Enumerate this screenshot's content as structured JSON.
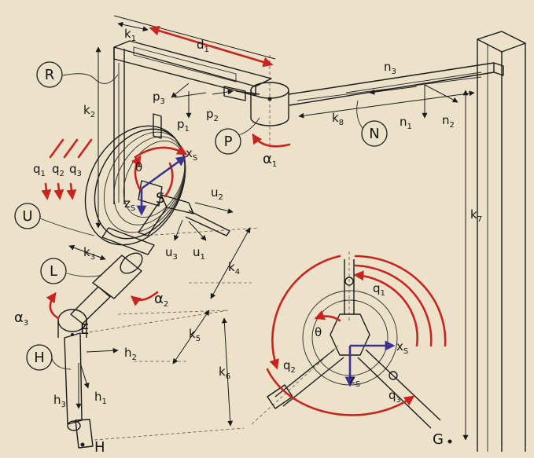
{
  "labels": {
    "R": "R",
    "P": "P",
    "N": "N",
    "U": "U",
    "L": "L",
    "H_circle": "H",
    "E": "E",
    "S": "S",
    "G": "G",
    "H": "H",
    "k1": "k",
    "k1_sub": "1",
    "k2": "k",
    "k2_sub": "2",
    "k3": "k",
    "k3_sub": "3",
    "k4": "k",
    "k4_sub": "4",
    "k5": "k",
    "k5_sub": "5",
    "k6": "k",
    "k6_sub": "6",
    "k7": "k",
    "k7_sub": "7",
    "k8": "k",
    "k8_sub": "8",
    "d1": "d",
    "d1_sub": "1",
    "p3": "p",
    "p3_sub": "3",
    "p1": "p",
    "p1_sub": "1",
    "p2": "p",
    "p2_sub": "2",
    "n3": "n",
    "n3_sub": "3",
    "n1": "n",
    "n1_sub": "1",
    "n2": "n",
    "n2_sub": "2",
    "u2": "u",
    "u2_sub": "2",
    "u3": "u",
    "u3_sub": "3",
    "u1": "u",
    "u1_sub": "1",
    "h2": "h",
    "h2_sub": "2",
    "h3": "h",
    "h3_sub": "3",
    "h1": "h",
    "h1_sub": "1",
    "q1": "q",
    "q1_sub": "1",
    "q2": "q",
    "q2_sub": "2",
    "q3": "q",
    "q3_sub": "3",
    "alpha1": "α",
    "alpha1_sub": "1",
    "alpha2": "α",
    "alpha2_sub": "2",
    "alpha3": "α",
    "alpha3_sub": "3",
    "theta": "θ",
    "theta_detail": "θ",
    "q1_detail": "q",
    "q1_detail_sub": "1",
    "q2_detail": "q",
    "q2_detail_sub": "2",
    "q3_detail": "q",
    "q3_detail_sub": "3",
    "xs": "x",
    "xs_sub": "S",
    "zs": "z",
    "zs_sub": "S",
    "xs_detail": "x",
    "xs_detail_sub": "S",
    "zs_detail": "z",
    "zs_detail_sub": "S"
  },
  "colors": {
    "background": "#ece1c9",
    "rotation_arrows": "#c8241f",
    "frame_axes": "#3b3392",
    "lines": "#1b1b1b"
  },
  "icons": {
    "arrow": "arrow-icon",
    "rotation": "rotation-arc-icon"
  }
}
